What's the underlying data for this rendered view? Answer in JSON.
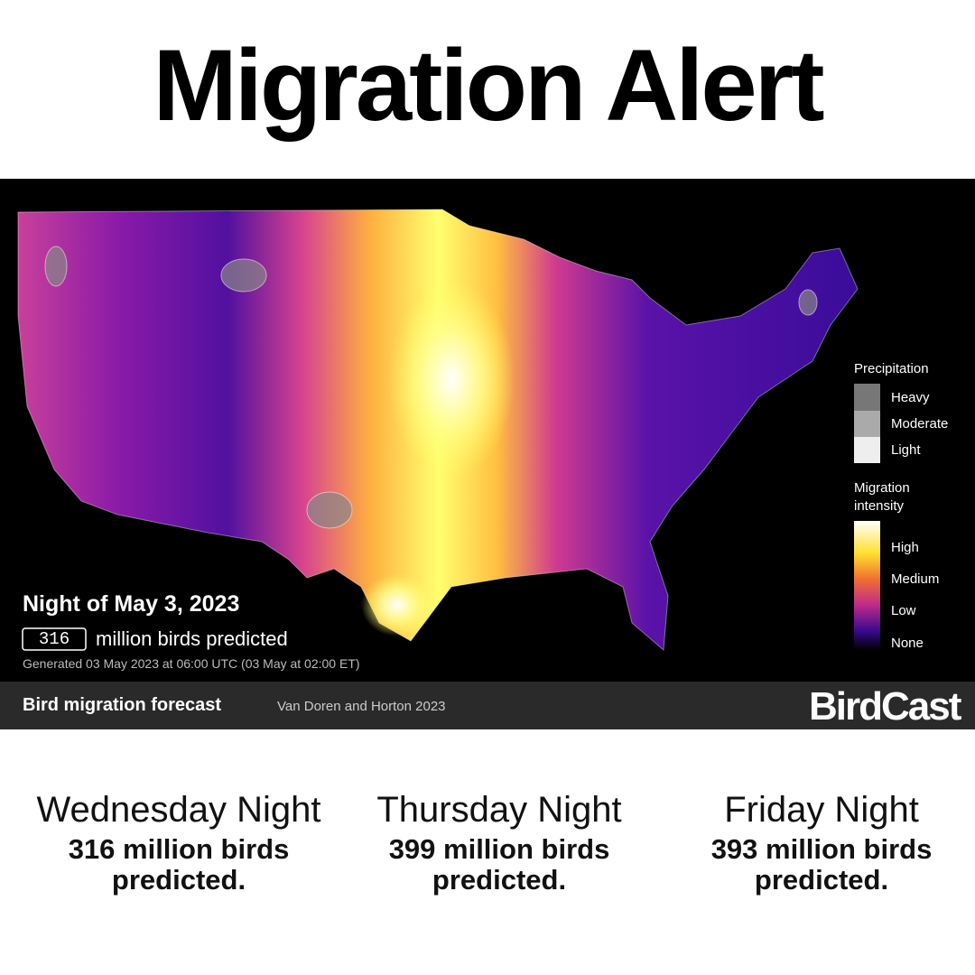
{
  "header": {
    "title": "Migration Alert"
  },
  "map": {
    "night": "Night of May 3, 2023",
    "count": 316,
    "count_text": "million birds predicted",
    "generated": "Generated 03 May 2023 at 06:00 UTC (03 May at 02:00 ET)",
    "legend": {
      "precipitation": {
        "title": "Precipitation",
        "items": [
          "Heavy",
          "Moderate",
          "Light"
        ]
      },
      "intensity": {
        "title": "Migration intensity",
        "items": [
          "High",
          "Medium",
          "Low",
          "None"
        ]
      }
    }
  },
  "footer": {
    "title": "Bird migration forecast",
    "credit": "Van Doren and Horton 2023",
    "brand": "BirdCast"
  },
  "forecasts": [
    {
      "day": "Wednesday Night",
      "text": "316 million birds predicted."
    },
    {
      "day": "Thursday Night",
      "text": "399 million birds predicted."
    },
    {
      "day": "Friday Night",
      "text": "393 million birds predicted."
    }
  ]
}
